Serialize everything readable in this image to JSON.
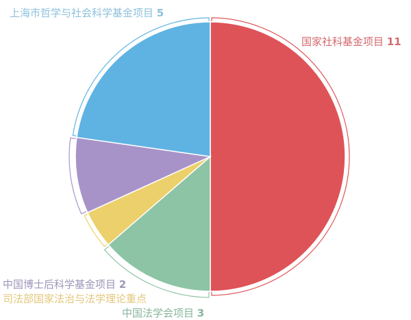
{
  "chart_data": {
    "type": "pie",
    "start": "top",
    "direction": "clockwise",
    "slices": [
      {
        "label": "国家社科基金项目",
        "value": 11,
        "value_label": "11",
        "color": "#de5357"
      },
      {
        "label": "中国法学会项目",
        "value": 3,
        "value_label": "3",
        "color": "#8cc4a5"
      },
      {
        "label": "司法部国家法治与法学理论重点",
        "value": 1,
        "value_label": "",
        "color": "#ecd06b"
      },
      {
        "label": "中国博士后科学基金项目",
        "value": 2,
        "value_label": "2",
        "color": "#a893c8"
      },
      {
        "label": "上海市哲学与社会科学基金项目",
        "value": 5,
        "value_label": "5",
        "color": "#5fb3e2"
      }
    ]
  }
}
